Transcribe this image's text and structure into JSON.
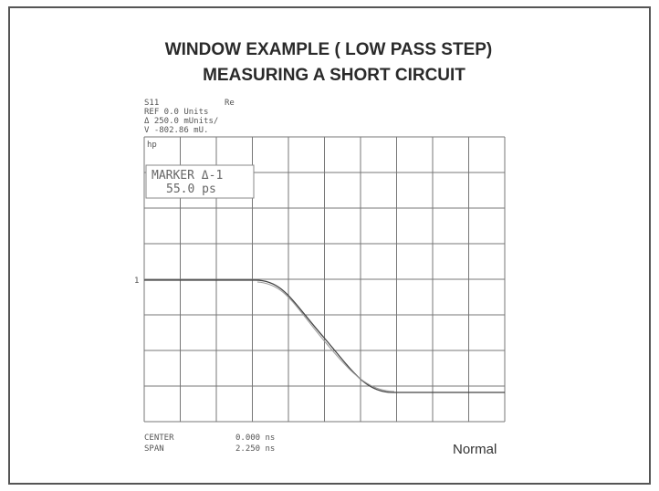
{
  "title": [
    "WINDOW EXAMPLE ( LOW PASS STEP)",
    "MEASURING A SHORT CIRCUIT"
  ],
  "header": {
    "parameter": "S11",
    "format": "Re",
    "reference": "REF 0.0 Units",
    "scale": "Δ 250.0 mUnits/",
    "marker_value": "V -802.86 mU."
  },
  "brand": "hp",
  "marker": {
    "label": "MARKER Δ-1",
    "value": "55.0 ps"
  },
  "axis_label": "1",
  "footer": {
    "center_label": "CENTER",
    "center_value": "0.000 ns",
    "span_label": "SPAN",
    "span_value": "2.250 ns",
    "mode": "Normal"
  }
}
